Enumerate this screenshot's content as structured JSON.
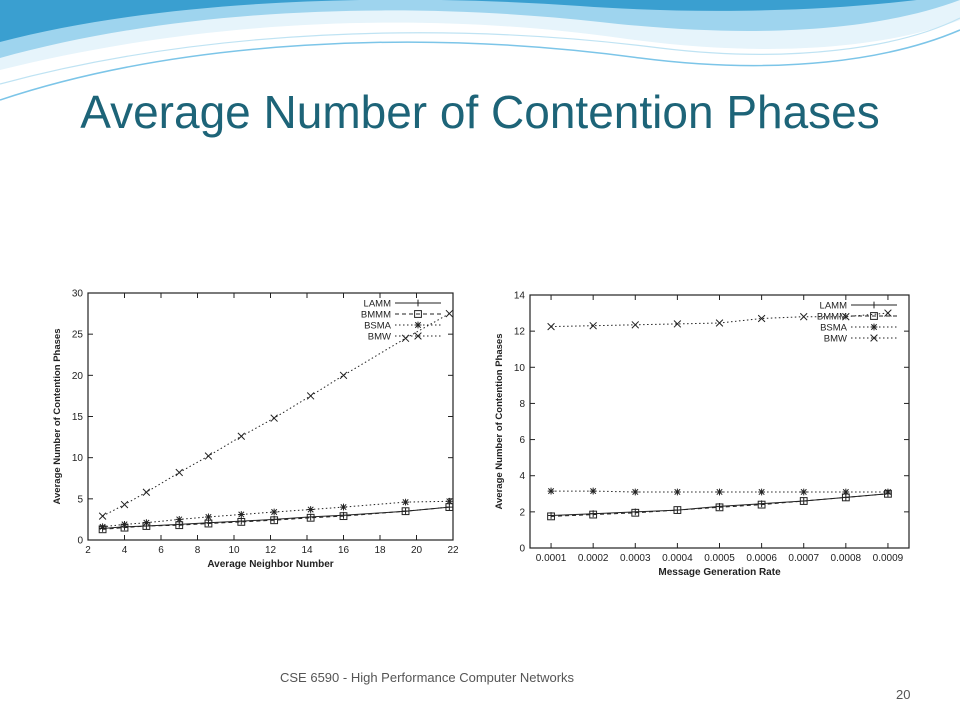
{
  "slide": {
    "title": "Average Number of Contention Phases",
    "footer": "CSE 6590 - High Performance Computer Networks",
    "page_number": "20",
    "title_color": "#1d6478",
    "wave_colors": [
      "#3a9fd0",
      "#7cc5e8",
      "#cfeaf6"
    ]
  },
  "chart_data": [
    {
      "type": "line",
      "xlabel": "Average Neighbor Number",
      "ylabel": "Average Number of Contention Phases",
      "xlim": [
        2,
        22
      ],
      "ylim": [
        0,
        30
      ],
      "xticks": [
        2,
        4,
        6,
        8,
        10,
        12,
        14,
        16,
        18,
        20,
        22
      ],
      "yticks": [
        0,
        5,
        10,
        15,
        20,
        25,
        30
      ],
      "grid": false,
      "legend_position": "top-right",
      "series": [
        {
          "name": "LAMM",
          "marker": "plus",
          "dash": "solid",
          "x": [
            2.8,
            4.0,
            5.2,
            7.0,
            8.6,
            10.4,
            12.2,
            14.2,
            16.0,
            19.4,
            21.8
          ],
          "y": [
            1.4,
            1.6,
            1.7,
            1.9,
            2.1,
            2.3,
            2.5,
            2.8,
            3.0,
            3.5,
            4.0
          ]
        },
        {
          "name": "BMMM",
          "marker": "square",
          "dash": "dashed",
          "x": [
            2.8,
            4.0,
            5.2,
            7.0,
            8.6,
            10.4,
            12.2,
            14.2,
            16.0,
            19.4,
            21.8
          ],
          "y": [
            1.3,
            1.5,
            1.7,
            1.8,
            2.0,
            2.2,
            2.4,
            2.7,
            2.9,
            3.5,
            4.0
          ]
        },
        {
          "name": "BSMA",
          "marker": "asterisk",
          "dash": "dotted",
          "x": [
            2.8,
            4.0,
            5.2,
            7.0,
            8.6,
            10.4,
            12.2,
            14.2,
            16.0,
            19.4,
            21.8
          ],
          "y": [
            1.6,
            1.9,
            2.1,
            2.5,
            2.8,
            3.1,
            3.4,
            3.7,
            4.0,
            4.6,
            4.7
          ]
        },
        {
          "name": "BMW",
          "marker": "cross",
          "dash": "dotted",
          "x": [
            2.8,
            4.0,
            5.2,
            7.0,
            8.6,
            10.4,
            12.2,
            14.2,
            16.0,
            19.4,
            21.8
          ],
          "y": [
            2.9,
            4.3,
            5.8,
            8.2,
            10.2,
            12.6,
            14.8,
            17.5,
            20.0,
            24.5,
            27.5
          ]
        }
      ]
    },
    {
      "type": "line",
      "xlabel": "Message Generation Rate",
      "ylabel": "Average Number of Contention Phases",
      "xlim": [
        5e-05,
        0.00095
      ],
      "ylim": [
        0,
        14
      ],
      "xticks": [
        "0.0001",
        "0.0002",
        "0.0003",
        "0.0004",
        "0.0005",
        "0.0006",
        "0.0007",
        "0.0008",
        "0.0009"
      ],
      "yticks": [
        0,
        2,
        4,
        6,
        8,
        10,
        12,
        14
      ],
      "grid": false,
      "legend_position": "top-right",
      "series": [
        {
          "name": "LAMM",
          "marker": "plus",
          "dash": "solid",
          "x": [
            0.0001,
            0.0002,
            0.0003,
            0.0004,
            0.0005,
            0.0006,
            0.0007,
            0.0008,
            0.0009
          ],
          "y": [
            1.8,
            1.9,
            2.0,
            2.1,
            2.3,
            2.45,
            2.6,
            2.8,
            3.0
          ]
        },
        {
          "name": "BMMM",
          "marker": "square",
          "dash": "dashed",
          "x": [
            0.0001,
            0.0002,
            0.0003,
            0.0004,
            0.0005,
            0.0006,
            0.0007,
            0.0008,
            0.0009
          ],
          "y": [
            1.75,
            1.85,
            1.95,
            2.1,
            2.25,
            2.4,
            2.6,
            2.8,
            3.0
          ]
        },
        {
          "name": "BSMA",
          "marker": "asterisk",
          "dash": "dotted",
          "x": [
            0.0001,
            0.0002,
            0.0003,
            0.0004,
            0.0005,
            0.0006,
            0.0007,
            0.0008,
            0.0009
          ],
          "y": [
            3.15,
            3.15,
            3.1,
            3.1,
            3.1,
            3.1,
            3.1,
            3.1,
            3.1
          ]
        },
        {
          "name": "BMW",
          "marker": "cross",
          "dash": "dotted",
          "x": [
            0.0001,
            0.0002,
            0.0003,
            0.0004,
            0.0005,
            0.0006,
            0.0007,
            0.0008,
            0.0009
          ],
          "y": [
            12.25,
            12.3,
            12.35,
            12.4,
            12.45,
            12.7,
            12.8,
            12.8,
            13.0
          ]
        }
      ]
    }
  ]
}
